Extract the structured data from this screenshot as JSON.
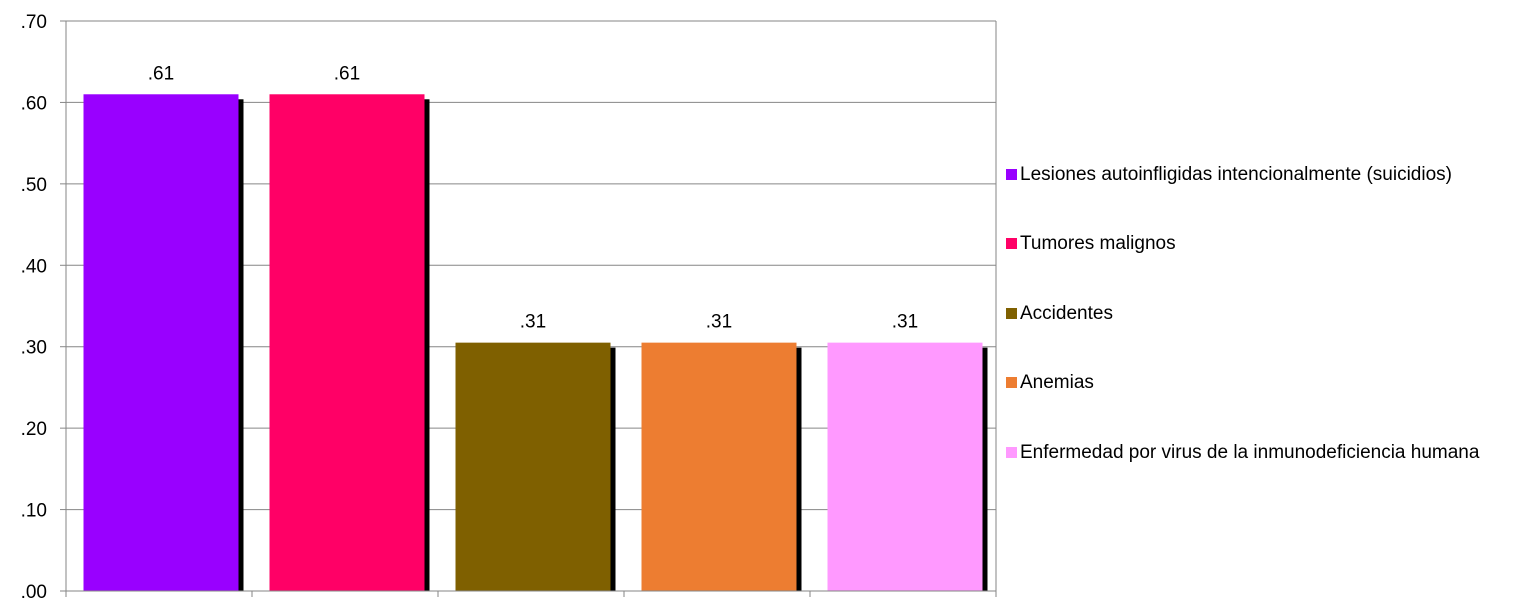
{
  "chart_data": {
    "type": "bar",
    "categories": [
      "Lesiones autoinfligidas intencionalmente (suicidios)",
      "Tumores malignos",
      "Accidentes",
      "Anemias",
      "Enfermedad por virus de la inmunodeficiencia humana"
    ],
    "values": [
      0.61,
      0.61,
      0.305,
      0.305,
      0.305
    ],
    "data_labels": [
      ".61",
      ".61",
      ".31",
      ".31",
      ".31"
    ],
    "colors": [
      "#9900FF",
      "#FF0066",
      "#7F6000",
      "#ED7D31",
      "#FF99FF"
    ],
    "ylim": [
      0,
      0.7
    ],
    "yticks": [
      {
        "value": 0.0,
        "label": ".00"
      },
      {
        "value": 0.1,
        "label": ".10"
      },
      {
        "value": 0.2,
        "label": ".20"
      },
      {
        "value": 0.3,
        "label": ".30"
      },
      {
        "value": 0.4,
        "label": ".40"
      },
      {
        "value": 0.5,
        "label": ".50"
      },
      {
        "value": 0.6,
        "label": ".60"
      },
      {
        "value": 0.7,
        "label": ".70"
      }
    ],
    "grid": true,
    "legend_position": "right",
    "title": "",
    "xlabel": "",
    "ylabel": ""
  },
  "legend": {
    "items": [
      {
        "label": "Lesiones autoinfligidas intencionalmente (suicidios)",
        "color": "#9900FF"
      },
      {
        "label": "Tumores malignos",
        "color": "#FF0066"
      },
      {
        "label": "Accidentes",
        "color": "#7F6000"
      },
      {
        "label": "Anemias",
        "color": "#ED7D31"
      },
      {
        "label": "Enfermedad por virus de la inmunodeficiencia humana",
        "color": "#FF99FF"
      }
    ]
  }
}
